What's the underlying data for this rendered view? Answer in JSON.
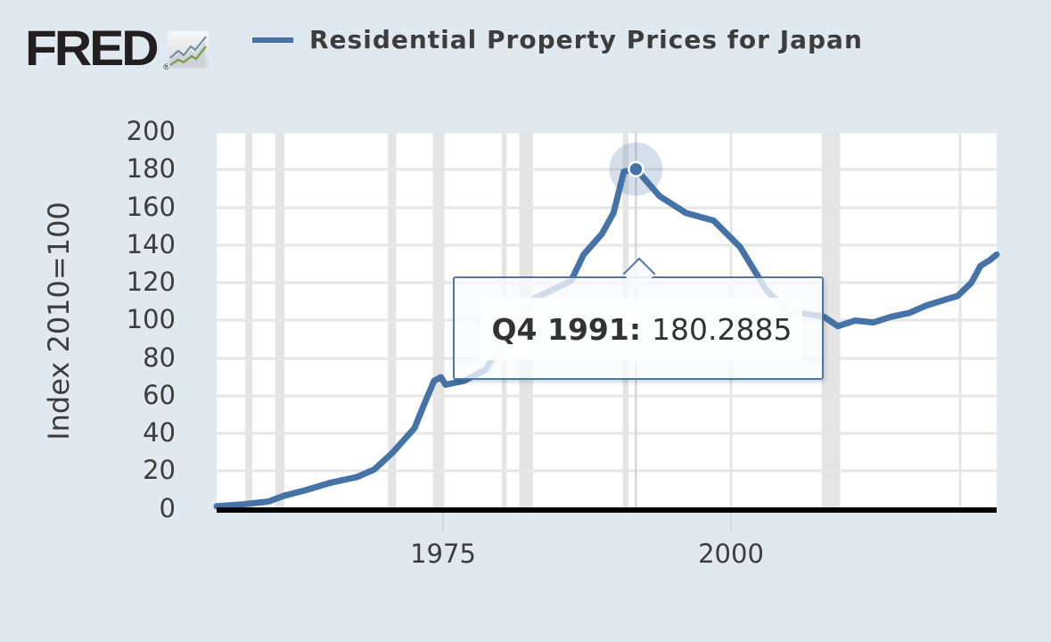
{
  "header": {
    "logo_text": "FRED",
    "logo_reg": "®",
    "legend_label": "Residential Property Prices for Japan",
    "series_color": "#4572a7"
  },
  "axes": {
    "y_title": "Index 2010=100",
    "y_ticks": [
      "200",
      "180",
      "160",
      "140",
      "120",
      "100",
      "80",
      "60",
      "40",
      "20",
      "0"
    ],
    "x_ticks": [
      "1975",
      "2000"
    ]
  },
  "tooltip": {
    "date": "Q4 1991:",
    "value": "180.2885"
  },
  "chart_data": {
    "type": "line",
    "title": "Residential Property Prices for Japan",
    "xlabel": "",
    "ylabel": "Index 2010=100",
    "ylim": [
      0,
      200
    ],
    "xlim": [
      1955.3,
      2023.1
    ],
    "grid": true,
    "legend_position": "top",
    "x_ticks": [
      1975,
      2000
    ],
    "y_ticks": [
      0,
      20,
      40,
      60,
      80,
      100,
      120,
      140,
      160,
      180,
      200
    ],
    "recession_shading": [
      [
        1957.8,
        1958.4
      ],
      [
        1960.4,
        1961.2
      ],
      [
        1970.2,
        1970.9
      ],
      [
        1974.1,
        1975.1
      ],
      [
        1980.1,
        1980.5
      ],
      [
        1981.6,
        1982.8
      ],
      [
        1990.6,
        1991.1
      ],
      [
        2007.9,
        2009.5
      ]
    ],
    "highlight": {
      "label": "Q4 1991",
      "x": 1991.75,
      "y": 180.2885
    },
    "series": [
      {
        "name": "Residential Property Prices for Japan",
        "color": "#4572a7",
        "x": [
          1955.3,
          1957.5,
          1959.8,
          1961.1,
          1963.0,
          1965.2,
          1967.5,
          1969.0,
          1970.6,
          1972.5,
          1973.3,
          1974.2,
          1974.8,
          1975.2,
          1976.8,
          1978.7,
          1980.7,
          1983.0,
          1986.1,
          1987.2,
          1988.8,
          1989.8,
          1990.7,
          1991.75,
          1993.8,
          1996.1,
          1998.5,
          2000.8,
          2003.1,
          2005.0,
          2008.1,
          2009.3,
          2010.8,
          2012.4,
          2013.9,
          2015.5,
          2017.0,
          2018.6,
          2019.7,
          2020.9,
          2021.7,
          2022.5,
          2023.1
        ],
        "values": [
          1.5,
          2.5,
          4,
          7,
          10,
          14,
          17,
          21,
          30,
          43,
          55,
          68,
          70,
          66,
          68,
          74,
          95,
          112,
          121,
          135,
          146,
          157,
          179,
          180.2885,
          166,
          157,
          153,
          139,
          116,
          105,
          102,
          97,
          100,
          99,
          102,
          104,
          108,
          111,
          113,
          120,
          129,
          132,
          135
        ]
      }
    ]
  }
}
